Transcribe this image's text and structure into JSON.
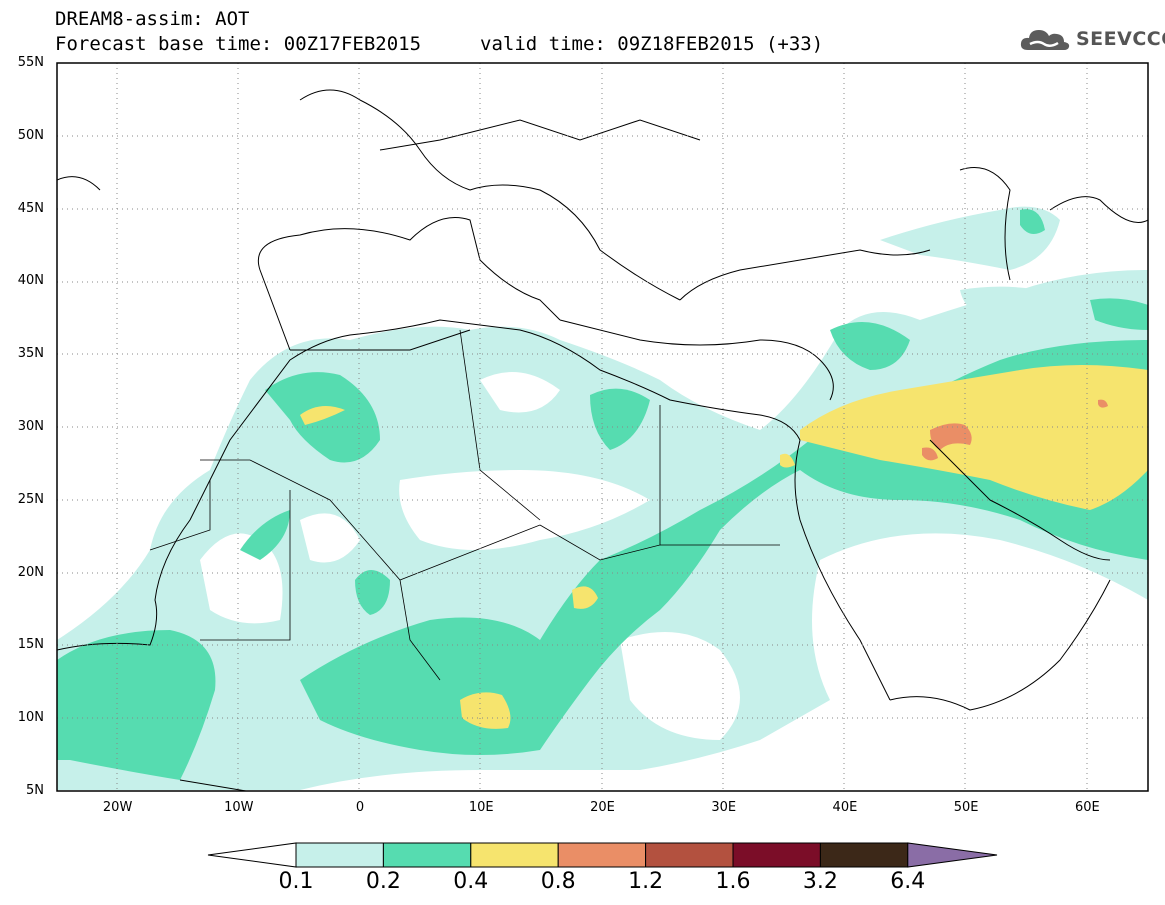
{
  "header": {
    "title": "DREAM8-assim: AOT",
    "forecast_base": "Forecast base time: 00Z17FEB2015",
    "valid_time": "valid time: 09Z18FEB2015 (+33)"
  },
  "logo": {
    "text": "SEEVCCC",
    "icon": "cloud-logo-icon"
  },
  "axes": {
    "lat_labels": [
      "55N",
      "50N",
      "45N",
      "40N",
      "35N",
      "30N",
      "25N",
      "20N",
      "15N",
      "10N",
      "5N"
    ],
    "lon_labels": [
      "20W",
      "10W",
      "0",
      "10E",
      "20E",
      "30E",
      "40E",
      "50E",
      "60E"
    ],
    "lat_range": [
      5,
      55
    ],
    "lon_range": [
      -25,
      65
    ],
    "grid": "dotted"
  },
  "colorbar": {
    "labels": [
      "0.1",
      "0.2",
      "0.4",
      "0.8",
      "1.2",
      "1.6",
      "3.2",
      "6.4"
    ],
    "colors": [
      "#c6f0ea",
      "#56dcb0",
      "#f6e46e",
      "#ea8e66",
      "#b3513f",
      "#7b0d28",
      "#3c2818",
      "#8a6da6"
    ],
    "under_color": "#ffffff"
  }
}
